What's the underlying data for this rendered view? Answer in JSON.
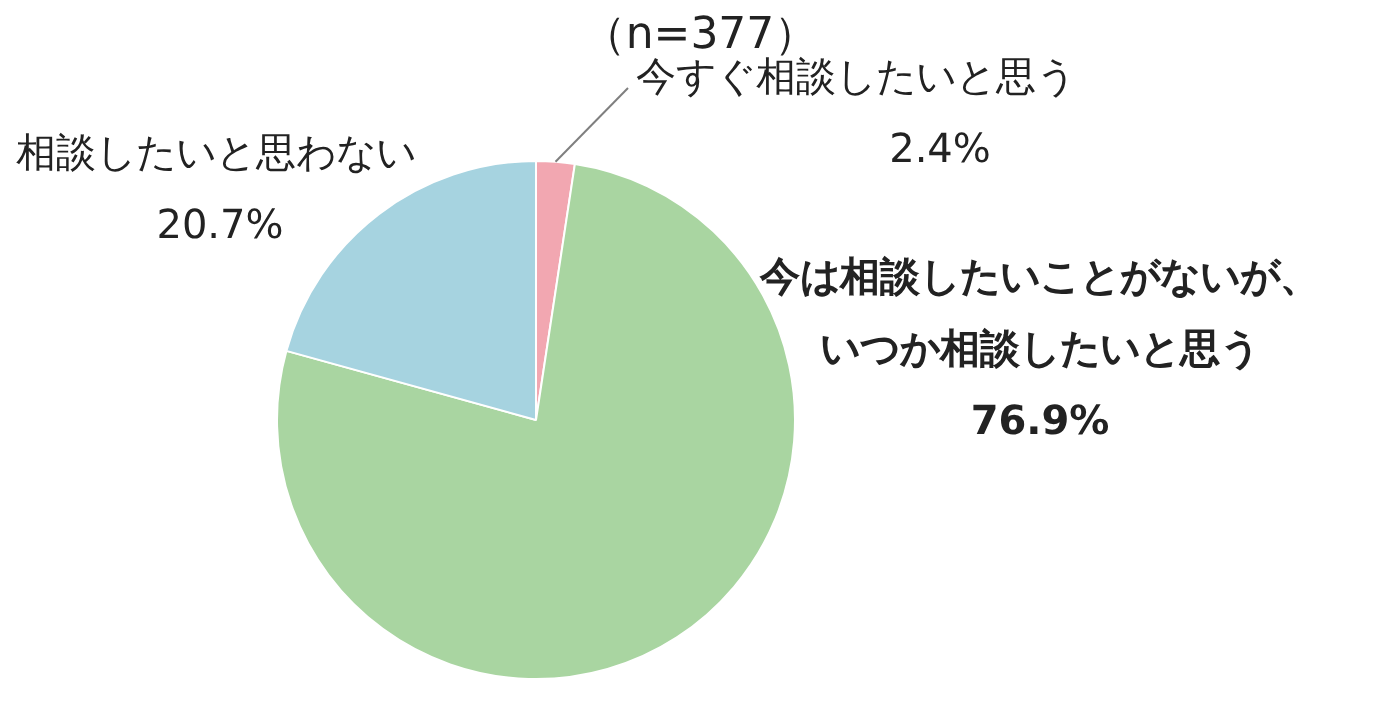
{
  "chart_data": {
    "type": "pie",
    "title": "（n=377）",
    "categories": [
      "今すぐ相談したいと思う",
      "今は相談したいことがないが、いつか相談したいと思う",
      "相談したいと思わない"
    ],
    "values": [
      2.4,
      76.9,
      20.7
    ],
    "colors": [
      "#f2a7b1",
      "#a9d5a1",
      "#a6d3e0"
    ],
    "value_labels": [
      "2.4%",
      "76.9%",
      "20.7%"
    ],
    "legend": false
  }
}
